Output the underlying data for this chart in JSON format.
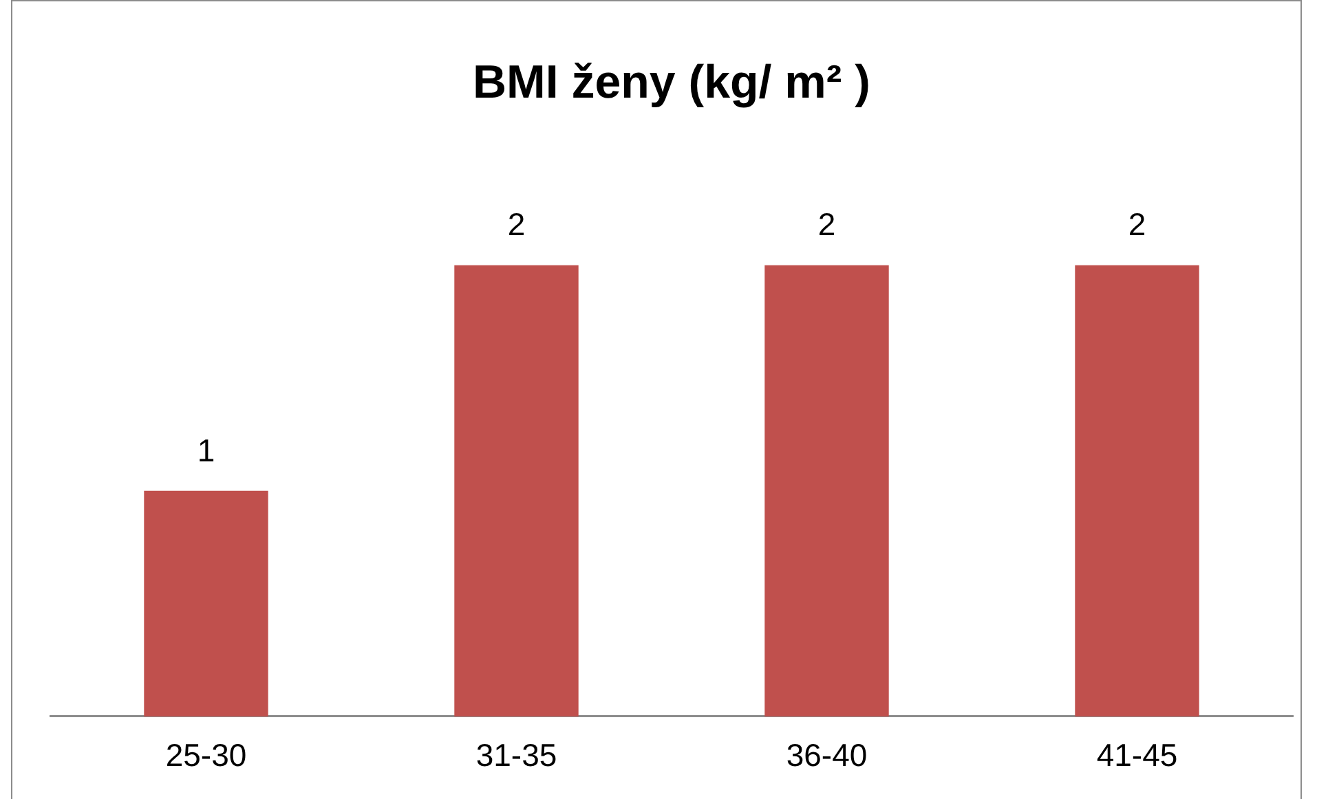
{
  "chart_data": {
    "type": "bar",
    "title": "BMI ženy (kg/ m² )",
    "categories": [
      "25-30",
      "31-35",
      "36-40",
      "41-45"
    ],
    "values": [
      1,
      2,
      2,
      2
    ],
    "color": "#c0504d",
    "data_labels": true,
    "tick_labels": "x"
  }
}
